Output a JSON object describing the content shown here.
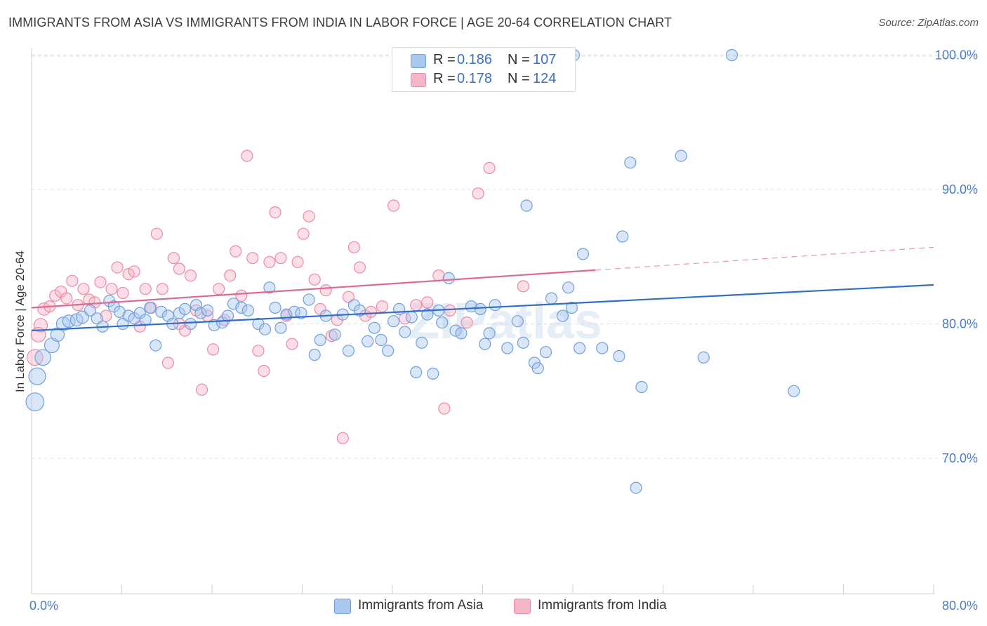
{
  "title": "IMMIGRANTS FROM ASIA VS IMMIGRANTS FROM INDIA IN LABOR FORCE | AGE 20-64 CORRELATION CHART",
  "source": "Source: ZipAtlas.com",
  "watermark": "ZIPatlas",
  "legend": {
    "asia": {
      "r_label": "R =",
      "r_value": "0.186",
      "n_label": "N =",
      "n_value": "107"
    },
    "india": {
      "r_label": "R =",
      "r_value": "0.178",
      "n_label": "N =",
      "n_value": "124"
    }
  },
  "bottom_legend": {
    "asia": "Immigrants from Asia",
    "india": "Immigrants from India"
  },
  "colors": {
    "asia_fill": "#a9c8f0",
    "asia_stroke": "#6f9fdc",
    "asia_line": "#2f6fcc",
    "india_fill": "#f7b6c8",
    "india_stroke": "#ec8aa6",
    "india_line": "#e06890",
    "axis_text": "#4a7cc7",
    "grid": "#e0e0e0"
  },
  "chart_data": {
    "type": "scatter",
    "title": "IMMIGRANTS FROM ASIA VS IMMIGRANTS FROM INDIA IN LABOR FORCE | AGE 20-64 CORRELATION CHART",
    "xlabel": "",
    "ylabel": "In Labor Force | Age 20-64",
    "xlim": [
      0,
      80
    ],
    "ylim": [
      60,
      104
    ],
    "x_tick_labels": [
      "0.0%",
      "80.0%"
    ],
    "y_ticks": [
      70,
      80,
      90,
      100
    ],
    "y_tick_labels": [
      "70.0%",
      "80.0%",
      "90.0%",
      "100.0%"
    ],
    "grid": "horizontal dashed",
    "legend_position": "top-center",
    "series": [
      {
        "name": "Immigrants from Asia",
        "trend": {
          "x": [
            0,
            80
          ],
          "y": [
            79.5,
            82.9
          ],
          "style": "solid"
        },
        "points": [
          [
            0.3,
            74.2,
            16
          ],
          [
            0.5,
            76.1,
            15
          ],
          [
            1.0,
            77.5,
            14
          ],
          [
            1.8,
            78.4,
            13
          ],
          [
            2.3,
            79.2,
            12
          ],
          [
            2.8,
            80.0,
            12
          ],
          [
            3.3,
            80.2,
            11
          ],
          [
            4.0,
            80.3,
            11
          ],
          [
            4.5,
            80.5,
            11
          ],
          [
            5.2,
            81.0,
            10
          ],
          [
            5.8,
            80.4,
            10
          ],
          [
            6.3,
            79.8,
            10
          ],
          [
            6.9,
            81.7,
            10
          ],
          [
            7.3,
            81.3,
            10
          ],
          [
            7.8,
            80.9,
            10
          ],
          [
            8.1,
            80.0,
            10
          ],
          [
            8.6,
            80.6,
            10
          ],
          [
            9.1,
            80.4,
            10
          ],
          [
            9.6,
            80.8,
            10
          ],
          [
            10.1,
            80.3,
            10
          ],
          [
            10.5,
            81.2,
            10
          ],
          [
            11.0,
            78.4,
            10
          ],
          [
            11.5,
            80.9,
            10
          ],
          [
            12.1,
            80.6,
            10
          ],
          [
            12.5,
            80.0,
            10
          ],
          [
            13.1,
            80.8,
            10
          ],
          [
            13.6,
            81.1,
            10
          ],
          [
            14.1,
            80.0,
            10
          ],
          [
            14.6,
            81.4,
            10
          ],
          [
            15.0,
            80.8,
            10
          ],
          [
            15.6,
            81.0,
            10
          ],
          [
            16.2,
            79.9,
            10
          ],
          [
            16.9,
            80.1,
            10
          ],
          [
            17.4,
            80.6,
            10
          ],
          [
            17.9,
            81.5,
            10
          ],
          [
            18.6,
            81.2,
            10
          ],
          [
            19.2,
            81.0,
            10
          ],
          [
            20.1,
            80.0,
            10
          ],
          [
            20.7,
            79.6,
            10
          ],
          [
            21.1,
            82.7,
            10
          ],
          [
            21.6,
            81.2,
            10
          ],
          [
            22.1,
            79.7,
            10
          ],
          [
            22.6,
            80.7,
            10
          ],
          [
            23.3,
            80.9,
            10
          ],
          [
            23.9,
            80.8,
            10
          ],
          [
            24.6,
            81.8,
            10
          ],
          [
            25.1,
            77.7,
            10
          ],
          [
            25.6,
            78.8,
            10
          ],
          [
            26.1,
            80.6,
            10
          ],
          [
            26.9,
            79.2,
            10
          ],
          [
            27.6,
            80.7,
            10
          ],
          [
            28.1,
            78.0,
            10
          ],
          [
            28.6,
            81.4,
            10
          ],
          [
            29.1,
            81.0,
            10
          ],
          [
            29.8,
            78.7,
            10
          ],
          [
            30.4,
            79.7,
            10
          ],
          [
            31.0,
            78.8,
            10
          ],
          [
            31.6,
            78.0,
            10
          ],
          [
            32.1,
            80.2,
            10
          ],
          [
            32.6,
            81.1,
            10
          ],
          [
            33.1,
            79.4,
            10
          ],
          [
            33.7,
            80.5,
            10
          ],
          [
            34.1,
            76.4,
            10
          ],
          [
            34.6,
            78.6,
            10
          ],
          [
            35.1,
            80.7,
            10
          ],
          [
            35.6,
            76.3,
            10
          ],
          [
            36.1,
            81.0,
            10
          ],
          [
            36.4,
            80.1,
            10
          ],
          [
            37.0,
            83.4,
            10
          ],
          [
            37.6,
            79.5,
            10
          ],
          [
            38.1,
            79.3,
            10
          ],
          [
            39.0,
            81.3,
            10
          ],
          [
            39.8,
            81.1,
            10
          ],
          [
            40.2,
            78.5,
            10
          ],
          [
            40.6,
            79.3,
            10
          ],
          [
            41.1,
            81.4,
            10
          ],
          [
            42.2,
            78.2,
            10
          ],
          [
            43.1,
            80.2,
            10
          ],
          [
            43.6,
            78.6,
            10
          ],
          [
            43.9,
            88.8,
            10
          ],
          [
            44.6,
            77.1,
            10
          ],
          [
            44.9,
            76.7,
            10
          ],
          [
            45.6,
            77.9,
            10
          ],
          [
            46.1,
            81.9,
            10
          ],
          [
            47.1,
            80.6,
            10
          ],
          [
            47.6,
            82.7,
            10
          ],
          [
            47.9,
            81.2,
            10
          ],
          [
            48.6,
            78.2,
            10
          ],
          [
            48.1,
            100.0,
            10
          ],
          [
            48.9,
            85.2,
            10
          ],
          [
            50.6,
            78.2,
            10
          ],
          [
            52.1,
            77.6,
            10
          ],
          [
            52.4,
            86.5,
            10
          ],
          [
            53.1,
            92.0,
            10
          ],
          [
            53.6,
            67.8,
            10
          ],
          [
            54.1,
            75.3,
            10
          ],
          [
            57.6,
            92.5,
            10
          ],
          [
            59.6,
            77.5,
            10
          ],
          [
            62.1,
            100.0,
            10
          ],
          [
            67.6,
            75.0,
            10
          ]
        ]
      },
      {
        "name": "Immigrants from India",
        "trend": {
          "x": [
            0,
            50,
            80
          ],
          "y": [
            81.2,
            84.0,
            85.7
          ],
          "style": "solid to x=50, dashed after"
        },
        "points": [
          [
            0.3,
            77.5,
            14
          ],
          [
            0.6,
            79.2,
            13
          ],
          [
            0.8,
            79.9,
            12
          ],
          [
            1.1,
            81.1,
            11
          ],
          [
            1.6,
            81.3,
            10
          ],
          [
            2.1,
            82.1,
            10
          ],
          [
            2.6,
            82.4,
            10
          ],
          [
            3.1,
            81.9,
            10
          ],
          [
            3.6,
            83.2,
            10
          ],
          [
            4.1,
            81.4,
            10
          ],
          [
            4.6,
            82.6,
            10
          ],
          [
            5.1,
            81.8,
            10
          ],
          [
            5.6,
            81.6,
            10
          ],
          [
            6.1,
            83.1,
            10
          ],
          [
            6.6,
            80.6,
            10
          ],
          [
            7.1,
            82.6,
            10
          ],
          [
            7.6,
            84.2,
            10
          ],
          [
            8.1,
            82.3,
            10
          ],
          [
            8.6,
            83.7,
            10
          ],
          [
            9.1,
            83.9,
            10
          ],
          [
            9.6,
            79.8,
            10
          ],
          [
            10.1,
            82.6,
            10
          ],
          [
            10.6,
            81.2,
            10
          ],
          [
            11.1,
            86.7,
            10
          ],
          [
            11.6,
            82.6,
            10
          ],
          [
            12.1,
            77.1,
            10
          ],
          [
            12.6,
            84.9,
            10
          ],
          [
            13.1,
            84.1,
            10
          ],
          [
            13.6,
            79.5,
            10
          ],
          [
            14.1,
            83.6,
            10
          ],
          [
            14.6,
            81.0,
            10
          ],
          [
            15.1,
            75.1,
            10
          ],
          [
            15.6,
            80.6,
            10
          ],
          [
            16.1,
            78.1,
            10
          ],
          [
            16.6,
            82.6,
            10
          ],
          [
            17.1,
            80.3,
            10
          ],
          [
            17.6,
            83.6,
            10
          ],
          [
            18.1,
            85.4,
            10
          ],
          [
            18.6,
            82.1,
            10
          ],
          [
            19.1,
            92.5,
            10
          ],
          [
            19.6,
            84.9,
            10
          ],
          [
            20.1,
            78.0,
            10
          ],
          [
            20.6,
            76.5,
            10
          ],
          [
            21.1,
            84.6,
            10
          ],
          [
            21.6,
            88.3,
            10
          ],
          [
            22.1,
            84.9,
            10
          ],
          [
            22.6,
            80.6,
            10
          ],
          [
            23.1,
            78.5,
            10
          ],
          [
            23.6,
            84.6,
            10
          ],
          [
            24.1,
            86.7,
            10
          ],
          [
            24.6,
            88.0,
            10
          ],
          [
            25.1,
            83.3,
            10
          ],
          [
            25.6,
            81.1,
            10
          ],
          [
            26.1,
            82.5,
            10
          ],
          [
            26.6,
            79.1,
            10
          ],
          [
            27.1,
            80.3,
            10
          ],
          [
            27.6,
            71.5,
            10
          ],
          [
            28.1,
            82.0,
            10
          ],
          [
            28.6,
            85.7,
            10
          ],
          [
            29.1,
            84.2,
            10
          ],
          [
            29.6,
            80.6,
            10
          ],
          [
            30.1,
            80.9,
            10
          ],
          [
            31.1,
            81.3,
            10
          ],
          [
            32.1,
            88.8,
            10
          ],
          [
            33.1,
            80.4,
            10
          ],
          [
            34.1,
            81.4,
            10
          ],
          [
            35.1,
            81.6,
            10
          ],
          [
            36.1,
            83.6,
            10
          ],
          [
            36.6,
            73.7,
            10
          ],
          [
            37.1,
            81.0,
            10
          ],
          [
            38.6,
            80.1,
            10
          ],
          [
            39.6,
            89.7,
            10
          ],
          [
            40.6,
            91.6,
            10
          ],
          [
            43.6,
            82.8,
            10
          ],
          [
            13.1,
            80.0,
            10
          ]
        ]
      }
    ]
  }
}
